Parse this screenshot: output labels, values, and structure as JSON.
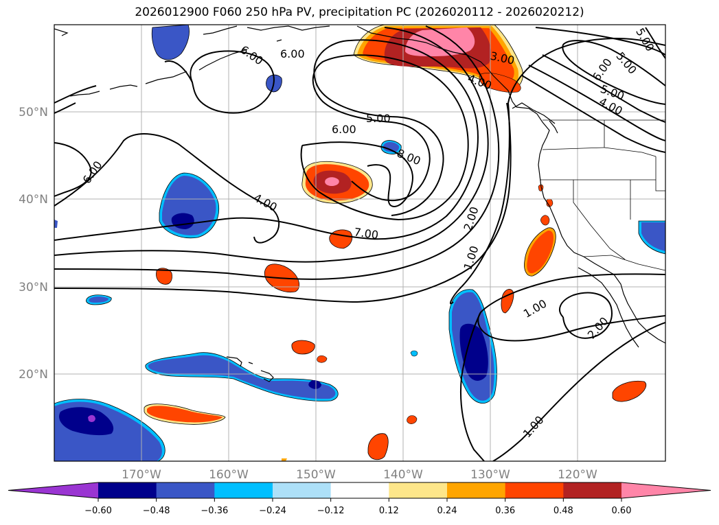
{
  "title": "2026012900 F060 250 hPa PV, precipitation PC (2026020112 - 2026020212)",
  "latitude_labels": [
    "50°N",
    "40°N",
    "30°N",
    "20°N"
  ],
  "longitude_labels": [
    "170°W",
    "160°W",
    "150°W",
    "140°W",
    "130°W",
    "120°W"
  ],
  "colorbar": {
    "tick_labels": [
      "−0.60",
      "−0.48",
      "−0.36",
      "−0.24",
      "−0.12",
      "0.12",
      "0.24",
      "0.36",
      "0.48",
      "0.60"
    ],
    "colors": {
      "under": "#9a35d2",
      "bins": [
        "#00008b",
        "#3a56c6",
        "#00bfff",
        "#ade0f8",
        "#ffffff",
        "#fde68a",
        "#ffa500",
        "#ff4500",
        "#b22222"
      ],
      "over": "#ff85a8"
    }
  },
  "pv_contour_labels": [
    "6.00",
    "6.00",
    "6.00",
    "6.00",
    "5.00",
    "5.00",
    "4.00",
    "3.00",
    "6.00",
    "5.00",
    "5.00",
    "4.00",
    "4.00",
    "8.00",
    "7.00",
    "2.00",
    "1.00",
    "1.00",
    "2.00",
    "1.00"
  ]
}
